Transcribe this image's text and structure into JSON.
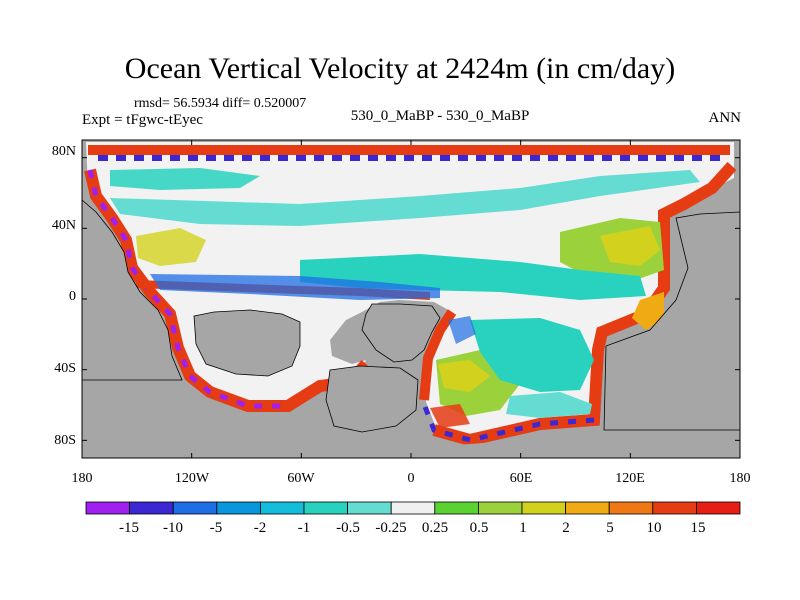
{
  "chart_data": {
    "type": "heatmap",
    "title": "Ocean Vertical Velocity at 2424m (in cm/day)",
    "stats_text": "rmsd= 56.5934 diff= 0.520007",
    "experiment_label": "Expt = tFgwc-tEyec",
    "case_label": "530_0_MaBP - 530_0_MaBP",
    "season": "ANN",
    "x_axis": {
      "range": [
        -180,
        180
      ],
      "ticks": [
        -180,
        -120,
        -60,
        0,
        60,
        120,
        180
      ],
      "tick_labels": [
        "180",
        "120W",
        "60W",
        "0",
        "60E",
        "120E",
        "180"
      ]
    },
    "y_axis": {
      "range": [
        -90,
        90
      ],
      "ticks": [
        80,
        40,
        0,
        -40,
        -80
      ],
      "tick_labels": [
        "80N",
        "40N",
        "0",
        "40S",
        "80S"
      ]
    },
    "land_color": "#a6a6a6",
    "colorbar": {
      "levels": [
        "-15",
        "-10",
        "-5",
        "-2",
        "-1",
        "-0.5",
        "-0.25",
        "0.25",
        "0.5",
        "1",
        "2",
        "5",
        "10",
        "15"
      ],
      "colors": [
        "#a020f0",
        "#3c28d2",
        "#1e6ee6",
        "#0a96dc",
        "#14beda",
        "#28d2be",
        "#64dcd2",
        "#f0f0f0",
        "#5ad232",
        "#9bd23c",
        "#d2d21e",
        "#f0aa14",
        "#f07814",
        "#e63c14",
        "#e61e14"
      ]
    }
  }
}
